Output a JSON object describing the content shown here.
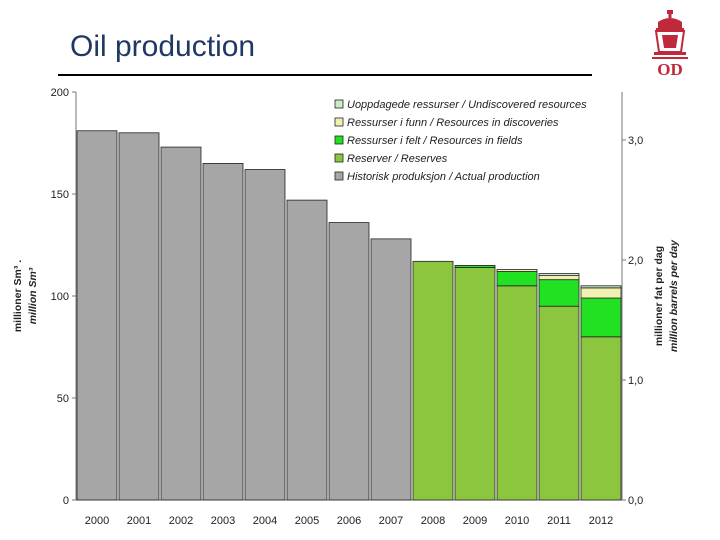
{
  "slide": {
    "title": "Oil production",
    "logo_text": "OD"
  },
  "colors": {
    "title": "#1f3864",
    "historical": "#a6a6a6",
    "reserves": "#8cc63f",
    "resources_fields": "#22e022",
    "resources_discoveries": "#f0f0b0",
    "undiscovered": "#c8ecc8",
    "logo": "#c0283c"
  },
  "chart_data": {
    "type": "bar",
    "stacked": true,
    "categories": [
      "2000",
      "2001",
      "2002",
      "2003",
      "2004",
      "2005",
      "2006",
      "2007",
      "2008",
      "2009",
      "2010",
      "2011",
      "2012"
    ],
    "series": [
      {
        "key": "historical",
        "name": "Historisk produksjon / Actual production",
        "values": [
          181,
          180,
          173,
          165,
          162,
          147,
          136,
          128,
          0,
          0,
          0,
          0,
          0
        ]
      },
      {
        "key": "reserves",
        "name": "Reserver / Reserves",
        "values": [
          0,
          0,
          0,
          0,
          0,
          0,
          0,
          0,
          117,
          114,
          105,
          95,
          80
        ]
      },
      {
        "key": "resources_fields",
        "name": "Ressurser i felt / Resources in fields",
        "values": [
          0,
          0,
          0,
          0,
          0,
          0,
          0,
          0,
          0,
          1,
          7,
          13,
          19
        ]
      },
      {
        "key": "resources_discoveries",
        "name": "Ressurser i funn / Resources in discoveries",
        "values": [
          0,
          0,
          0,
          0,
          0,
          0,
          0,
          0,
          0,
          0,
          1,
          2,
          5
        ]
      },
      {
        "key": "undiscovered",
        "name": "Uoppdagede ressurser / Undiscovered resources",
        "values": [
          0,
          0,
          0,
          0,
          0,
          0,
          0,
          0,
          0,
          0,
          0,
          1,
          1
        ]
      }
    ],
    "legend_order": [
      "undiscovered",
      "resources_discoveries",
      "resources_fields",
      "reserves",
      "historical"
    ],
    "ylim": [
      0,
      200
    ],
    "yticks": [
      "0",
      "50",
      "100",
      "150",
      "200"
    ],
    "ylabel_no": "millioner Sm³ .",
    "ylabel_en": "million Sm³",
    "y2lim": [
      0,
      3.4
    ],
    "y2ticks": [
      "0,0",
      "1,0",
      "2,0",
      "3,0"
    ],
    "y2label_no": "millioner fat per dag",
    "y2label_en": "million barrels per day",
    "legend_position": "top-right",
    "grid": false
  }
}
